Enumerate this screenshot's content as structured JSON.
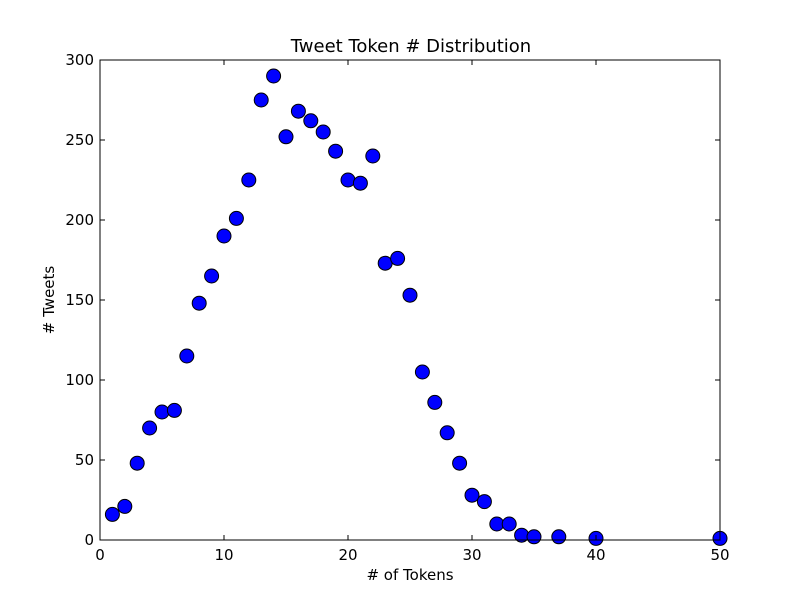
{
  "chart_data": {
    "type": "scatter",
    "title": "Tweet Token # Distribution",
    "xlabel": "# of Tokens",
    "ylabel": "# Tweets",
    "xlim": [
      0,
      50
    ],
    "ylim": [
      0,
      300
    ],
    "x_ticks": [
      "0",
      "10",
      "20",
      "30",
      "40",
      "50"
    ],
    "y_ticks": [
      "0",
      "50",
      "100",
      "150",
      "200",
      "250",
      "300"
    ],
    "grid": false,
    "marker_color": "#0000ff",
    "marker_edge_color": "#000000",
    "points": [
      {
        "x": 1,
        "y": 16
      },
      {
        "x": 2,
        "y": 21
      },
      {
        "x": 3,
        "y": 48
      },
      {
        "x": 4,
        "y": 70
      },
      {
        "x": 5,
        "y": 80
      },
      {
        "x": 6,
        "y": 81
      },
      {
        "x": 7,
        "y": 115
      },
      {
        "x": 8,
        "y": 148
      },
      {
        "x": 9,
        "y": 165
      },
      {
        "x": 10,
        "y": 190
      },
      {
        "x": 11,
        "y": 201
      },
      {
        "x": 12,
        "y": 225
      },
      {
        "x": 13,
        "y": 275
      },
      {
        "x": 14,
        "y": 290
      },
      {
        "x": 15,
        "y": 252
      },
      {
        "x": 16,
        "y": 268
      },
      {
        "x": 17,
        "y": 262
      },
      {
        "x": 18,
        "y": 255
      },
      {
        "x": 19,
        "y": 243
      },
      {
        "x": 20,
        "y": 225
      },
      {
        "x": 21,
        "y": 223
      },
      {
        "x": 22,
        "y": 240
      },
      {
        "x": 23,
        "y": 173
      },
      {
        "x": 24,
        "y": 176
      },
      {
        "x": 25,
        "y": 153
      },
      {
        "x": 26,
        "y": 105
      },
      {
        "x": 27,
        "y": 86
      },
      {
        "x": 28,
        "y": 67
      },
      {
        "x": 29,
        "y": 48
      },
      {
        "x": 30,
        "y": 28
      },
      {
        "x": 31,
        "y": 24
      },
      {
        "x": 32,
        "y": 10
      },
      {
        "x": 33,
        "y": 10
      },
      {
        "x": 34,
        "y": 3
      },
      {
        "x": 35,
        "y": 2
      },
      {
        "x": 37,
        "y": 2
      },
      {
        "x": 40,
        "y": 1
      },
      {
        "x": 50,
        "y": 1
      }
    ]
  }
}
